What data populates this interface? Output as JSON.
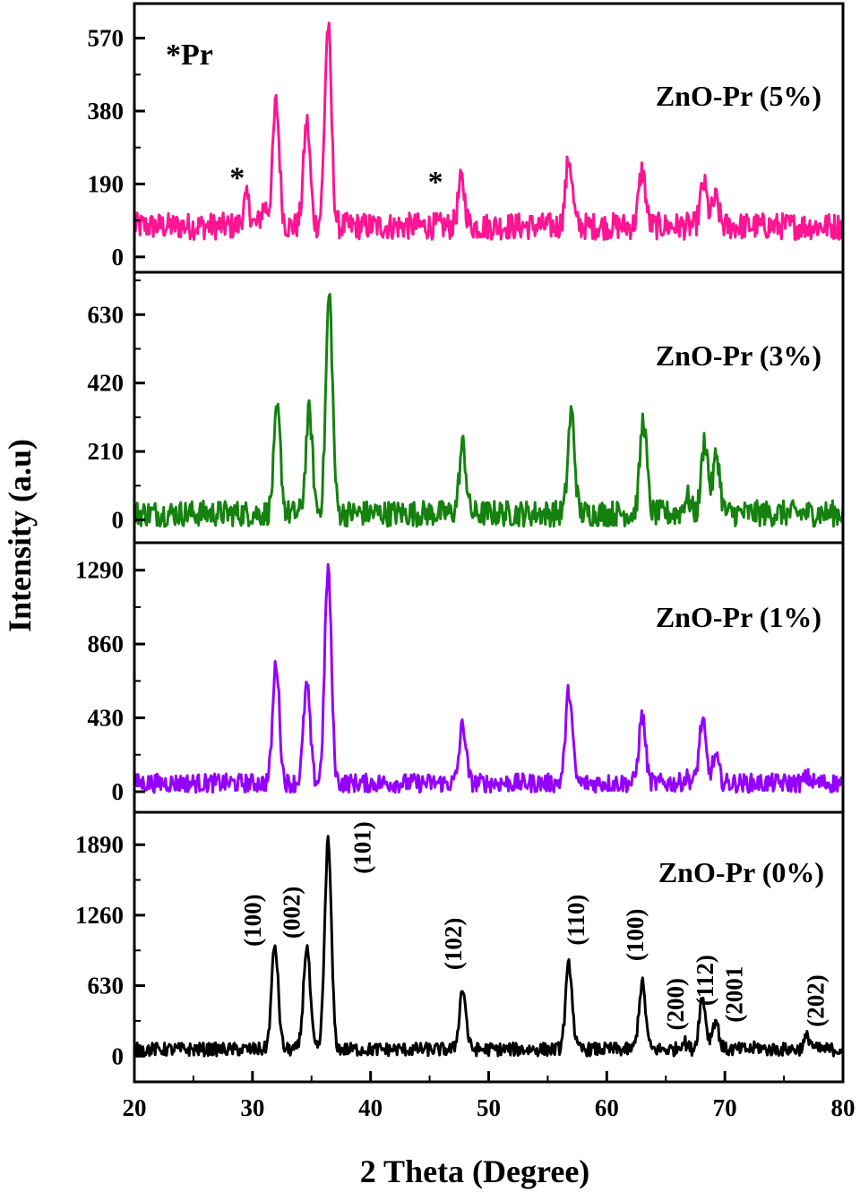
{
  "chart_data": {
    "type": "line",
    "xlabel": "2 Theta (Degree)",
    "ylabel": "Intensity (a.u)",
    "xlim": [
      20,
      80
    ],
    "x_ticks": [
      20,
      30,
      40,
      50,
      60,
      70,
      80
    ],
    "legend_note": "*Pr",
    "panels": [
      {
        "name": "ZnO-Pr (5%)",
        "color": "#ff1493",
        "y_ticks": [
          0,
          190,
          380,
          570
        ],
        "ylim": [
          -40,
          660
        ],
        "baseline": 80,
        "noise": 35,
        "peaks": [
          {
            "x": 29.5,
            "y": 150
          },
          {
            "x": 31.0,
            "y": 130
          },
          {
            "x": 32.0,
            "y": 400
          },
          {
            "x": 34.6,
            "y": 350
          },
          {
            "x": 36.4,
            "y": 600
          },
          {
            "x": 47.7,
            "y": 200
          },
          {
            "x": 56.8,
            "y": 255
          },
          {
            "x": 63.0,
            "y": 225
          },
          {
            "x": 68.2,
            "y": 190
          },
          {
            "x": 69.2,
            "y": 150
          }
        ],
        "markers": [
          {
            "x": 28.7,
            "y": 180,
            "label": "*"
          },
          {
            "x": 45.5,
            "y": 170,
            "label": "*"
          }
        ]
      },
      {
        "name": "ZnO-Pr (3%)",
        "color": "#15820f",
        "y_ticks": [
          0,
          210,
          420,
          630
        ],
        "ylim": [
          -70,
          760
        ],
        "baseline": 20,
        "noise": 40,
        "peaks": [
          {
            "x": 32.1,
            "y": 330
          },
          {
            "x": 34.8,
            "y": 330
          },
          {
            "x": 36.5,
            "y": 690
          },
          {
            "x": 47.8,
            "y": 230
          },
          {
            "x": 57.0,
            "y": 330
          },
          {
            "x": 63.1,
            "y": 310
          },
          {
            "x": 66.8,
            "y": 70
          },
          {
            "x": 68.3,
            "y": 245
          },
          {
            "x": 69.3,
            "y": 200
          }
        ]
      },
      {
        "name": "ZnO-Pr (1%)",
        "color": "#9400ff",
        "y_ticks": [
          0,
          430,
          860,
          1290
        ],
        "ylim": [
          -120,
          1450
        ],
        "baseline": 50,
        "noise": 55,
        "peaks": [
          {
            "x": 32.0,
            "y": 750
          },
          {
            "x": 34.6,
            "y": 620
          },
          {
            "x": 36.4,
            "y": 1300
          },
          {
            "x": 47.8,
            "y": 390
          },
          {
            "x": 56.8,
            "y": 590
          },
          {
            "x": 63.0,
            "y": 440
          },
          {
            "x": 66.8,
            "y": 80
          },
          {
            "x": 68.1,
            "y": 410
          },
          {
            "x": 69.2,
            "y": 200
          },
          {
            "x": 77.0,
            "y": 80
          }
        ]
      },
      {
        "name": "ZnO-Pr (0%)",
        "color": "#000000",
        "y_ticks": [
          0,
          630,
          1260,
          1890
        ],
        "ylim": [
          -230,
          2180
        ],
        "baseline": 60,
        "noise": 60,
        "peaks": [
          {
            "x": 31.9,
            "y": 990
          },
          {
            "x": 34.6,
            "y": 980
          },
          {
            "x": 36.4,
            "y": 1920
          },
          {
            "x": 47.8,
            "y": 600
          },
          {
            "x": 56.8,
            "y": 820
          },
          {
            "x": 63.0,
            "y": 650
          },
          {
            "x": 66.5,
            "y": 130
          },
          {
            "x": 68.1,
            "y": 520
          },
          {
            "x": 69.2,
            "y": 320
          },
          {
            "x": 72.8,
            "y": 80
          },
          {
            "x": 77.0,
            "y": 170
          }
        ],
        "hkl_labels": [
          {
            "x": 30.0,
            "y": 980,
            "label": "(100)"
          },
          {
            "x": 33.3,
            "y": 1050,
            "label": "(002)"
          },
          {
            "x": 39.3,
            "y": 1630,
            "label": "(101)"
          },
          {
            "x": 47.0,
            "y": 770,
            "label": "(102)"
          },
          {
            "x": 57.4,
            "y": 990,
            "label": "(110)"
          },
          {
            "x": 62.4,
            "y": 850,
            "label": "(100)"
          },
          {
            "x": 65.8,
            "y": 230,
            "label": "(200)"
          },
          {
            "x": 68.3,
            "y": 450,
            "label": "(112)"
          },
          {
            "x": 70.8,
            "y": 300,
            "label": "(2001"
          },
          {
            "x": 77.7,
            "y": 260,
            "label": "(202)"
          }
        ]
      }
    ]
  }
}
